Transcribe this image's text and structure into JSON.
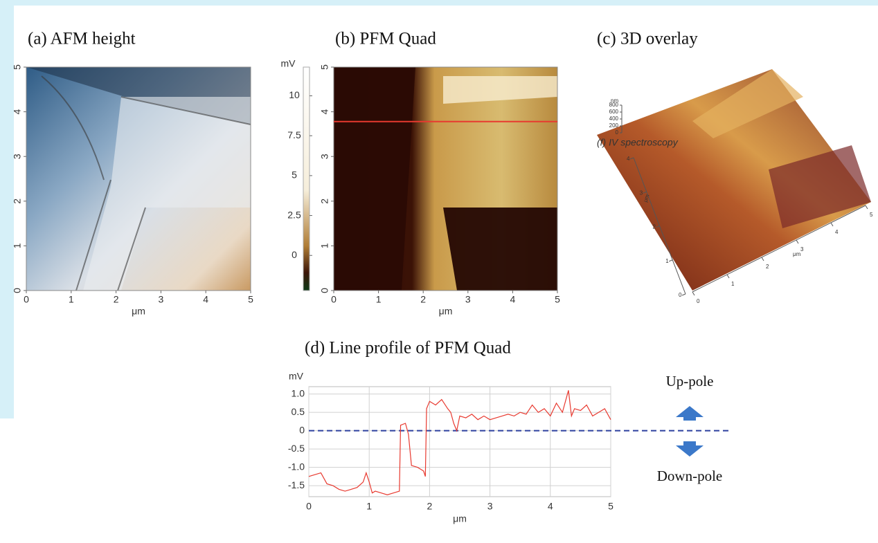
{
  "chart_data": [
    {
      "type": "image",
      "title": "(a) AFM height",
      "xlabel": "μm",
      "xlim": [
        0,
        5
      ],
      "ylim": [
        0,
        5
      ],
      "xticks": [
        0,
        1,
        2,
        3,
        4,
        5
      ],
      "yticks": [
        0,
        1,
        2,
        3,
        4,
        5
      ]
    },
    {
      "type": "image",
      "title": "(b) PFM Quad",
      "xlabel": "μm",
      "xlim": [
        0,
        5
      ],
      "ylim": [
        0,
        5
      ],
      "xticks": [
        0,
        1,
        2,
        3,
        4,
        5
      ],
      "yticks": [
        0,
        1,
        2,
        3,
        4,
        5
      ],
      "profile_y": 3.78,
      "profile_color": "#e8392f",
      "colorbar_label": "mV",
      "clim": [
        -2.2,
        11.8
      ],
      "cticks": [
        0,
        2.5,
        5,
        7.5,
        10
      ]
    },
    {
      "type": "surface3d",
      "title": "(c) 3D overlay",
      "annotation": "(f) IV spectroscopy",
      "xlabel": "μm",
      "ylabel": "μm",
      "zlabel": "nm",
      "xticks": [
        0,
        1,
        2,
        3,
        4,
        5
      ],
      "yticks": [
        0,
        1,
        2,
        3,
        4
      ],
      "zticks": [
        0,
        200,
        400,
        600,
        800
      ]
    },
    {
      "type": "line",
      "title": "(d) Line profile of PFM Quad",
      "xlabel": "μm",
      "ylabel": "mV",
      "xlim": [
        0,
        5
      ],
      "ylim": [
        -1.8,
        1.2
      ],
      "xticks": [
        0,
        1,
        2,
        3,
        4,
        5
      ],
      "yticks": [
        -1.5,
        {
          "value": -1,
          "label": "-1.0"
        },
        -0.5,
        0,
        0.5,
        {
          "value": 1,
          "label": "1.0"
        }
      ],
      "grid": true,
      "reference_line": 0,
      "reference_color": "#2b3f9e",
      "annotations": [
        "Up-pole",
        "Down-pole"
      ],
      "x": [
        0,
        0.1,
        0.2,
        0.3,
        0.4,
        0.5,
        0.6,
        0.7,
        0.8,
        0.9,
        0.95,
        1.0,
        1.05,
        1.1,
        1.2,
        1.3,
        1.4,
        1.5,
        1.52,
        1.6,
        1.65,
        1.7,
        1.8,
        1.9,
        1.93,
        1.95,
        2.0,
        2.1,
        2.2,
        2.3,
        2.35,
        2.4,
        2.45,
        2.5,
        2.6,
        2.7,
        2.8,
        2.9,
        3.0,
        3.1,
        3.2,
        3.3,
        3.4,
        3.5,
        3.6,
        3.7,
        3.8,
        3.9,
        4.0,
        4.1,
        4.2,
        4.3,
        4.35,
        4.4,
        4.5,
        4.6,
        4.7,
        4.8,
        4.9,
        5.0
      ],
      "series": [
        {
          "color": "#e8392f",
          "values": [
            -1.25,
            -1.2,
            -1.15,
            -1.45,
            -1.5,
            -1.6,
            -1.65,
            -1.6,
            -1.55,
            -1.4,
            -1.15,
            -1.4,
            -1.7,
            -1.65,
            -1.7,
            -1.75,
            -1.7,
            -1.65,
            0.15,
            0.2,
            -0.1,
            -0.95,
            -1.0,
            -1.1,
            -1.25,
            0.6,
            0.8,
            0.7,
            0.85,
            0.6,
            0.5,
            0.2,
            0.0,
            0.4,
            0.35,
            0.45,
            0.3,
            0.4,
            0.3,
            0.35,
            0.4,
            0.45,
            0.4,
            0.5,
            0.45,
            0.7,
            0.5,
            0.6,
            0.4,
            0.75,
            0.5,
            1.1,
            0.4,
            0.6,
            0.55,
            0.7,
            0.4,
            0.5,
            0.6,
            0.3
          ]
        }
      ]
    }
  ]
}
